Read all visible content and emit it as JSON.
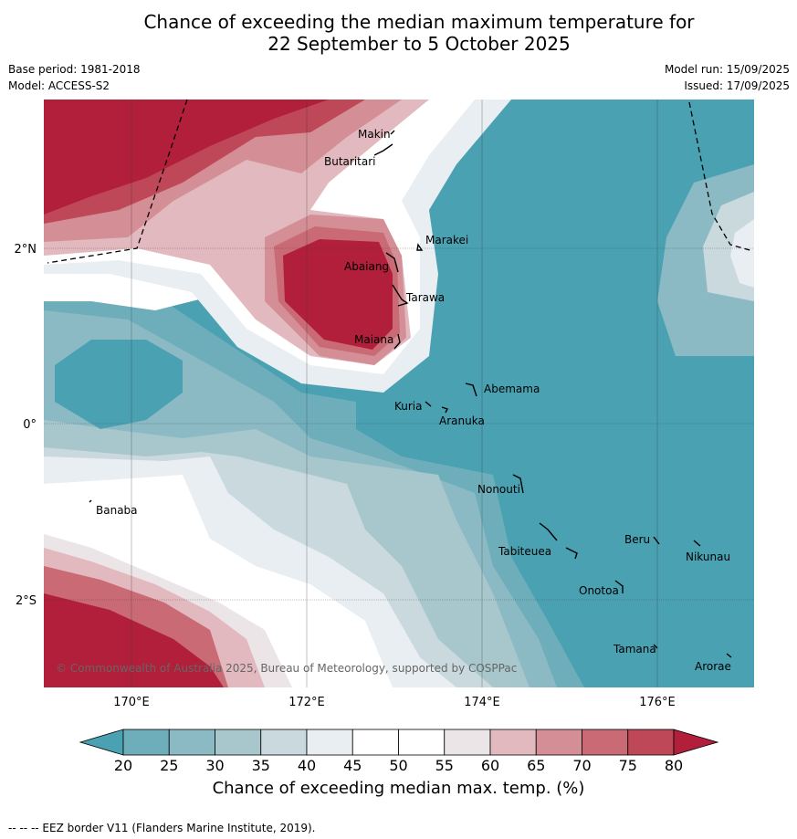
{
  "title_line1": "Chance of exceeding the median maximum temperature for",
  "title_line2": "22 September to 5 October 2025",
  "meta": {
    "base_period": "Base period: 1981-2018",
    "model": "Model: ACCESS-S2",
    "model_run": "Model run: 15/09/2025",
    "issued": "Issued: 17/09/2025"
  },
  "copyright": "© Commonwealth of Australia 2025, Bureau of Meteorology, supported by COSPPac",
  "lon_ticks": [
    "170°E",
    "172°E",
    "174°E",
    "176°E"
  ],
  "lat_ticks": [
    "2°N",
    "0°",
    "2°S"
  ],
  "places": [
    "Makin",
    "Butaritari",
    "Marakei",
    "Abaiang",
    "Tarawa",
    "Maiana",
    "Abemama",
    "Kuria",
    "Aranuka",
    "Banaba",
    "Nonouti",
    "Beru",
    "Nikunau",
    "Tabiteuea",
    "Onotoa",
    "Tamana",
    "Arorae"
  ],
  "colorbar": {
    "ticks": [
      "20",
      "25",
      "30",
      "35",
      "40",
      "45",
      "50",
      "55",
      "60",
      "65",
      "70",
      "75",
      "80"
    ],
    "label": "Chance of exceeding median max. temp. (%)",
    "colors": [
      "#4aa1b2",
      "#6eaebb",
      "#8bbac5",
      "#a7c7cc",
      "#c9d9de",
      "#e8eef1",
      "#ffffff",
      "#ffffff",
      "#ece5e7",
      "#e2b9be",
      "#d48e96",
      "#c96a74",
      "#be4858",
      "#b11f3a"
    ]
  },
  "footnote": "-- -- -- EEZ border V11 (Flanders Marine Institute, 2019)."
}
